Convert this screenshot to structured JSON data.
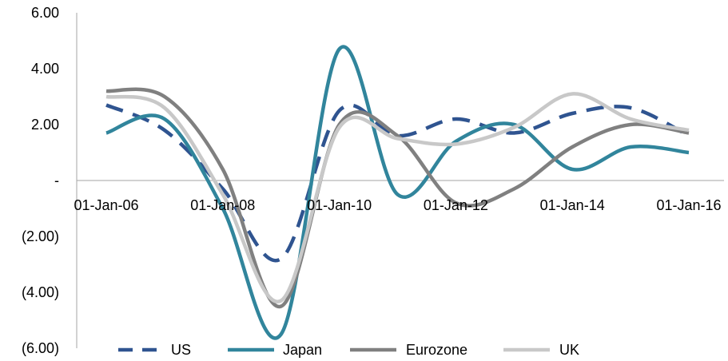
{
  "chart_data": {
    "type": "line",
    "title": "",
    "xlabel": "",
    "ylabel": "",
    "ylim": [
      -6,
      6
    ],
    "y_ticks": [
      {
        "value": 6,
        "label": "6.00"
      },
      {
        "value": 4,
        "label": "4.00"
      },
      {
        "value": 2,
        "label": "2.00"
      },
      {
        "value": 0,
        "label": "-"
      },
      {
        "value": -2,
        "label": "(2.00)"
      },
      {
        "value": -4,
        "label": "(4.00)"
      },
      {
        "value": -6,
        "label": "(6.00)"
      }
    ],
    "x_tick_labels": [
      "01-Jan-06",
      "01-Jan-08",
      "01-Jan-10",
      "01-Jan-12",
      "01-Jan-14",
      "01-Jan-16"
    ],
    "x": [
      "2006",
      "2007",
      "2008",
      "2009",
      "2010",
      "2011",
      "2012",
      "2013",
      "2014",
      "2015",
      "2016"
    ],
    "series": [
      {
        "name": "US",
        "color": "#2F5490",
        "dash": true,
        "values": [
          2.7,
          1.8,
          -0.3,
          -2.8,
          2.5,
          1.6,
          2.2,
          1.7,
          2.4,
          2.6,
          1.6
        ]
      },
      {
        "name": "Japan",
        "color": "#31859C",
        "dash": false,
        "values": [
          1.7,
          2.2,
          -1.0,
          -5.5,
          4.7,
          -0.5,
          1.4,
          2.0,
          0.4,
          1.2,
          1.0
        ]
      },
      {
        "name": "Eurozone",
        "color": "#808080",
        "dash": false,
        "values": [
          3.2,
          3.0,
          0.4,
          -4.5,
          2.0,
          1.6,
          -0.8,
          -0.3,
          1.2,
          2.0,
          1.7
        ]
      },
      {
        "name": "UK",
        "color": "#C8C8C8",
        "dash": false,
        "values": [
          3.0,
          2.6,
          -0.5,
          -4.3,
          1.9,
          1.5,
          1.3,
          1.9,
          3.1,
          2.2,
          1.8
        ]
      }
    ],
    "legend": {
      "position": "bottom"
    },
    "grid": false
  }
}
